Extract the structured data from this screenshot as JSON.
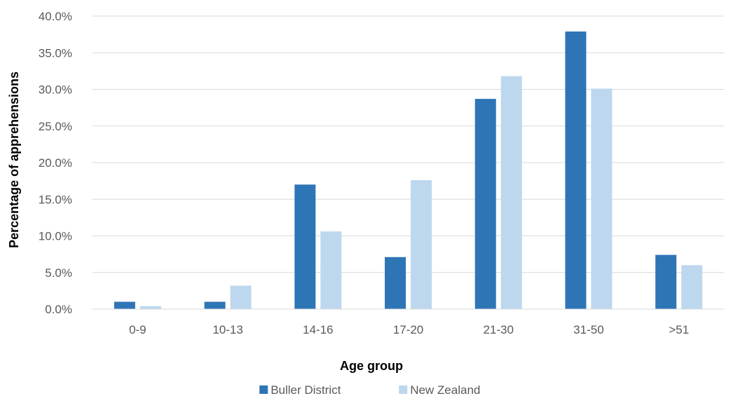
{
  "chart_data": {
    "type": "bar",
    "title": "",
    "xlabel": "Age group",
    "ylabel": "Percentage of apprehensions",
    "categories": [
      "0-9",
      "10-13",
      "14-16",
      "17-20",
      "21-30",
      "31-50",
      ">51"
    ],
    "series": [
      {
        "name": "Buller District",
        "color": "#2E75B6",
        "values": [
          1.0,
          1.0,
          17.0,
          7.1,
          28.7,
          37.9,
          7.4
        ]
      },
      {
        "name": "New Zealand",
        "color": "#BDD7EE",
        "values": [
          0.4,
          3.2,
          10.6,
          17.6,
          31.8,
          30.1,
          6.0
        ]
      }
    ],
    "ylim": [
      0,
      40
    ],
    "yticks": [
      "0.0%",
      "5.0%",
      "10.0%",
      "15.0%",
      "20.0%",
      "25.0%",
      "30.0%",
      "35.0%",
      "40.0%"
    ],
    "grid": true,
    "legend_position": "bottom"
  }
}
